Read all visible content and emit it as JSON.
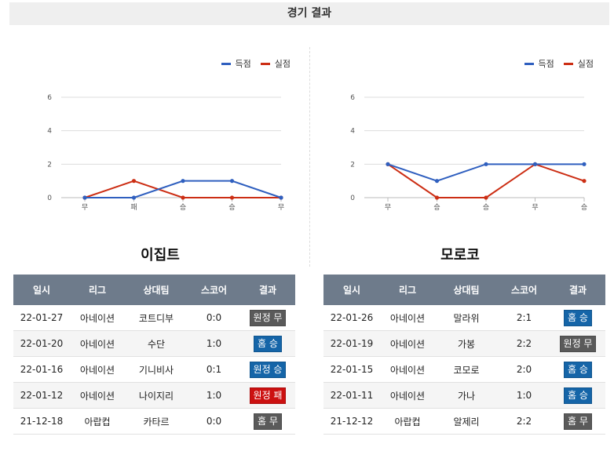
{
  "header": {
    "title": "경기 결과"
  },
  "colors": {
    "scored": "#2f5fbf",
    "conceded": "#cc2e14",
    "win": "#1565a8",
    "draw": "#5a5a5a",
    "loss": "#cc1111"
  },
  "chart_data": [
    {
      "type": "line",
      "categories": [
        "무",
        "패",
        "승",
        "승",
        "무"
      ],
      "series": [
        {
          "name": "득점",
          "values": [
            0,
            0,
            1,
            1,
            0
          ]
        },
        {
          "name": "실점",
          "values": [
            0,
            1,
            0,
            0,
            0
          ]
        }
      ],
      "ylim": [
        0,
        6
      ],
      "yticks": [
        "0",
        "2",
        "4",
        "6"
      ],
      "grid": true,
      "legend": "top-right"
    },
    {
      "type": "line",
      "categories": [
        "무",
        "승",
        "승",
        "무",
        "승"
      ],
      "series": [
        {
          "name": "득점",
          "values": [
            2,
            1,
            2,
            2,
            2
          ]
        },
        {
          "name": "실점",
          "values": [
            2,
            0,
            0,
            2,
            1
          ]
        }
      ],
      "ylim": [
        0,
        6
      ],
      "yticks": [
        "0",
        "2",
        "4",
        "6"
      ],
      "grid": true,
      "legend": "top-right"
    }
  ],
  "teams": [
    {
      "name": "이집트",
      "columns": [
        "일시",
        "리그",
        "상대팀",
        "스코어",
        "결과"
      ],
      "rows": [
        {
          "date": "22-01-27",
          "league": "아네이션",
          "opponent": "코트디부",
          "score": "0:0",
          "result": "원정 무",
          "result_type": "draw"
        },
        {
          "date": "22-01-20",
          "league": "아네이션",
          "opponent": "수단",
          "score": "1:0",
          "result": "홈 승",
          "result_type": "win"
        },
        {
          "date": "22-01-16",
          "league": "아네이션",
          "opponent": "기니비사",
          "score": "0:1",
          "result": "원정 승",
          "result_type": "win"
        },
        {
          "date": "22-01-12",
          "league": "아네이션",
          "opponent": "나이지리",
          "score": "1:0",
          "result": "원정 패",
          "result_type": "loss"
        },
        {
          "date": "21-12-18",
          "league": "아랍컵",
          "opponent": "카타르",
          "score": "0:0",
          "result": "홈 무",
          "result_type": "draw"
        }
      ]
    },
    {
      "name": "모로코",
      "columns": [
        "일시",
        "리그",
        "상대팀",
        "스코어",
        "결과"
      ],
      "rows": [
        {
          "date": "22-01-26",
          "league": "아네이션",
          "opponent": "말라위",
          "score": "2:1",
          "result": "홈 승",
          "result_type": "win"
        },
        {
          "date": "22-01-19",
          "league": "아네이션",
          "opponent": "가봉",
          "score": "2:2",
          "result": "원정 무",
          "result_type": "draw"
        },
        {
          "date": "22-01-15",
          "league": "아네이션",
          "opponent": "코모로",
          "score": "2:0",
          "result": "홈 승",
          "result_type": "win"
        },
        {
          "date": "22-01-11",
          "league": "아네이션",
          "opponent": "가나",
          "score": "1:0",
          "result": "홈 승",
          "result_type": "win"
        },
        {
          "date": "21-12-12",
          "league": "아랍컵",
          "opponent": "알제리",
          "score": "2:2",
          "result": "홈 무",
          "result_type": "draw"
        }
      ]
    }
  ]
}
